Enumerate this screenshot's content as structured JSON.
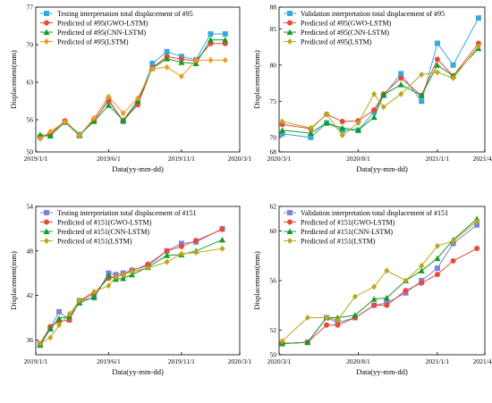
{
  "chart_data": [
    {
      "type": "line",
      "xlabel": "Data(yy-mm-dd)",
      "ylabel": "Displacement(mm)",
      "xticks": [
        "2019/1/1",
        "2019/6/1",
        "2019/11/1",
        "2020/3/1"
      ],
      "xlim": [
        0,
        14
      ],
      "xtick_positions": [
        0,
        5,
        10,
        14
      ],
      "yticks": [
        50,
        56,
        63,
        70,
        77
      ],
      "ylim": [
        50,
        77
      ],
      "legend_position": "top-left",
      "series": [
        {
          "name": "Testing interpretation total displacement of #95",
          "color": "#36a9e0",
          "marker": "square",
          "x": [
            0.3,
            1,
            2,
            3,
            4,
            5,
            6,
            7,
            8,
            9,
            10,
            11,
            12,
            13
          ],
          "y": [
            52.8,
            53.1,
            55.5,
            53.0,
            55.8,
            59.8,
            55.7,
            59.2,
            66.5,
            68.7,
            67.8,
            67.2,
            72.0,
            72.0
          ]
        },
        {
          "name": "Predicted of #95(GWO-LSTM)",
          "color": "#e84a3a",
          "marker": "circle",
          "x": [
            0.3,
            1,
            2,
            3,
            4,
            5,
            6,
            7,
            8,
            9,
            10,
            11,
            12,
            13
          ],
          "y": [
            52.6,
            53.4,
            55.8,
            53.2,
            56.0,
            59.5,
            55.8,
            58.8,
            65.7,
            67.8,
            67.3,
            67.0,
            70.2,
            70.2
          ]
        },
        {
          "name": "Predicted of #95(CNN-LSTM)",
          "color": "#149c24",
          "marker": "triangle",
          "x": [
            0.3,
            1,
            2,
            3,
            4,
            5,
            6,
            7,
            8,
            9,
            10,
            11,
            12,
            13
          ],
          "y": [
            53.2,
            53.0,
            55.7,
            53.3,
            55.7,
            58.7,
            55.9,
            59.5,
            65.6,
            67.4,
            66.7,
            66.5,
            70.9,
            70.9
          ]
        },
        {
          "name": "Predicted of #95(LSTM)",
          "color": "#f39a1c",
          "marker": "diamond",
          "x": [
            0.3,
            1,
            2,
            3,
            4,
            5,
            6,
            7,
            8,
            9,
            10,
            11,
            12,
            13
          ],
          "y": [
            52.5,
            53.8,
            55.6,
            53.1,
            56.3,
            60.3,
            57.2,
            60.0,
            65.5,
            65.8,
            64.1,
            67.1,
            67.1,
            67.1
          ]
        }
      ]
    },
    {
      "type": "line",
      "xlabel": "Data(yy-mm-dd)",
      "ylabel": "Displacement(mm)",
      "xticks": [
        "2020/3/1",
        "2020/8/1",
        "2021/1/1",
        "2021/4/1"
      ],
      "xlim": [
        0,
        13
      ],
      "xtick_positions": [
        0,
        5,
        10,
        13
      ],
      "yticks": [
        68,
        70,
        75,
        80,
        85,
        88
      ],
      "ylim": [
        68,
        88
      ],
      "legend_position": "top-left",
      "series": [
        {
          "name": "Validation interpretation total displacement of #95",
          "color": "#36a9e0",
          "marker": "square",
          "x": [
            0.2,
            2,
            3,
            4,
            5,
            6,
            6.6,
            7.7,
            9,
            10,
            11,
            12.6
          ],
          "y": [
            70.5,
            70.0,
            72.0,
            71.0,
            71.0,
            73.5,
            75.8,
            78.8,
            75.0,
            83.0,
            80.0,
            86.5
          ]
        },
        {
          "name": "Predicted of #95(GWO-LSTM)",
          "color": "#e84a3a",
          "marker": "circle",
          "x": [
            0.2,
            2,
            3,
            4,
            5,
            6,
            6.6,
            7.7,
            9,
            10,
            11,
            12.6
          ],
          "y": [
            71.8,
            71.2,
            73.2,
            72.2,
            72.3,
            73.8,
            76.0,
            78.2,
            75.8,
            80.8,
            78.5,
            83.0
          ]
        },
        {
          "name": "Predicted of #95(CNN-LSTM)",
          "color": "#149c24",
          "marker": "triangle",
          "x": [
            0.2,
            2,
            3,
            4,
            5,
            6,
            6.6,
            7.7,
            9,
            10,
            11,
            12.6
          ],
          "y": [
            71.0,
            70.6,
            72.0,
            71.3,
            71.0,
            72.8,
            75.9,
            77.3,
            75.8,
            80.0,
            78.5,
            82.3
          ]
        },
        {
          "name": "Predicted of #95(LSTM)",
          "color": "#b9a81c",
          "marker": "diamond",
          "x": [
            0.2,
            2,
            3,
            4,
            5,
            6,
            6.6,
            7.7,
            9,
            10,
            11,
            12.6
          ],
          "y": [
            72.2,
            71.3,
            73.2,
            70.3,
            72.0,
            76.0,
            74.2,
            76.0,
            78.7,
            79.0,
            78.2,
            82.6
          ]
        }
      ]
    },
    {
      "type": "line",
      "xlabel": "Data(yy-mm-dd)",
      "ylabel": "Displacement(mm)",
      "xticks": [
        "2019/1/1",
        "2019/6/1",
        "2019/11/1",
        "2020/3/1"
      ],
      "xlim": [
        0,
        14
      ],
      "xtick_positions": [
        0,
        5,
        10,
        14
      ],
      "yticks": [
        36,
        42,
        48,
        54
      ],
      "ylim": [
        34,
        54
      ],
      "legend_position": "top-left",
      "series": [
        {
          "name": "Testing interpretation total displacement of #151",
          "color": "#8080e0",
          "marker": "square",
          "x": [
            0.3,
            1,
            1.6,
            2.3,
            3,
            4,
            5,
            5.5,
            6,
            6.6,
            7.7,
            9,
            10,
            11,
            12.8
          ],
          "y": [
            35.5,
            37.6,
            39.8,
            38.7,
            41.3,
            41.7,
            45.0,
            44.8,
            45.0,
            45.4,
            46.0,
            48.0,
            49.0,
            49.2,
            51.0
          ]
        },
        {
          "name": "Predicted of #151(GWO-LSTM)",
          "color": "#e84a3a",
          "marker": "circle",
          "x": [
            0.3,
            1,
            1.6,
            2.3,
            3,
            4,
            5,
            5.5,
            6,
            6.6,
            7.7,
            9,
            10,
            11,
            12.8
          ],
          "y": [
            35.5,
            37.8,
            38.5,
            38.7,
            41.2,
            42.3,
            44.3,
            44.5,
            44.8,
            45.3,
            46.2,
            48.0,
            48.6,
            49.4,
            50.9
          ]
        },
        {
          "name": "Predicted of #151(CNN-LSTM)",
          "color": "#149c24",
          "marker": "triangle",
          "x": [
            0.3,
            1,
            1.6,
            2.3,
            3,
            4,
            5,
            5.5,
            6,
            6.6,
            7.7,
            9,
            10,
            11,
            12.8
          ],
          "y": [
            35.3,
            37.5,
            38.9,
            39.2,
            41.0,
            41.8,
            44.7,
            44.2,
            44.3,
            44.8,
            45.8,
            47.4,
            47.5,
            48.0,
            49.5
          ]
        },
        {
          "name": "Predicted of #151(LSTM)",
          "color": "#b9a81c",
          "marker": "diamond",
          "x": [
            0.3,
            1,
            1.6,
            2.3,
            3,
            4,
            5,
            5.5,
            6,
            6.6,
            7.7,
            9,
            10,
            11,
            12.8
          ],
          "y": [
            35.5,
            36.3,
            38.0,
            39.5,
            41.3,
            42.5,
            43.3,
            44.5,
            44.8,
            45.2,
            45.7,
            46.5,
            47.6,
            47.8,
            48.3
          ]
        }
      ]
    },
    {
      "type": "line",
      "xlabel": "Data(yy-mm-dd)",
      "ylabel": "Displacement(mm)",
      "xticks": [
        "2020/3/1",
        "2020/8/1",
        "2021/1/1",
        "2021/4/1"
      ],
      "xlim": [
        0,
        13
      ],
      "xtick_positions": [
        0,
        5,
        10,
        13
      ],
      "yticks": [
        50,
        52,
        56,
        60,
        62
      ],
      "ylim": [
        50,
        62
      ],
      "legend_position": "top-left",
      "series": [
        {
          "name": "Validation interpretation total displacement of #151",
          "color": "#8080e0",
          "marker": "square",
          "x": [
            0.2,
            1.8,
            3,
            3.7,
            4.8,
            6,
            6.8,
            8,
            9,
            10,
            11,
            12.5
          ],
          "y": [
            50.9,
            51.0,
            53.0,
            52.6,
            53.0,
            54.0,
            54.2,
            55.0,
            56.0,
            57.0,
            59.0,
            60.5
          ]
        },
        {
          "name": "Predicted of #151(GWO-LSTM)",
          "color": "#e84a3a",
          "marker": "circle",
          "x": [
            0.2,
            1.8,
            3,
            3.7,
            4.8,
            6,
            6.8,
            8,
            9,
            10,
            11,
            12.5
          ],
          "y": [
            50.9,
            51.0,
            52.4,
            52.4,
            53.0,
            54.0,
            54.0,
            55.2,
            55.8,
            56.5,
            57.6,
            58.6
          ]
        },
        {
          "name": "Predicted of #151(CNN-LSTM)",
          "color": "#149c24",
          "marker": "triangle",
          "x": [
            0.2,
            1.8,
            3,
            3.7,
            4.8,
            6,
            6.8,
            8,
            9,
            10,
            11,
            12.5
          ],
          "y": [
            50.9,
            51.0,
            53.0,
            53.0,
            53.2,
            54.5,
            54.6,
            56.0,
            56.8,
            57.8,
            59.3,
            61.0
          ]
        },
        {
          "name": "Predicted of #151(LSTM)",
          "color": "#b9a81c",
          "marker": "diamond",
          "x": [
            0.2,
            1.8,
            3,
            3.7,
            4.8,
            6,
            6.8,
            8,
            9,
            10,
            11,
            12.5
          ],
          "y": [
            51.1,
            53.0,
            53.0,
            52.8,
            54.7,
            55.5,
            56.8,
            56.0,
            57.2,
            58.8,
            59.2,
            60.8
          ]
        }
      ]
    }
  ]
}
